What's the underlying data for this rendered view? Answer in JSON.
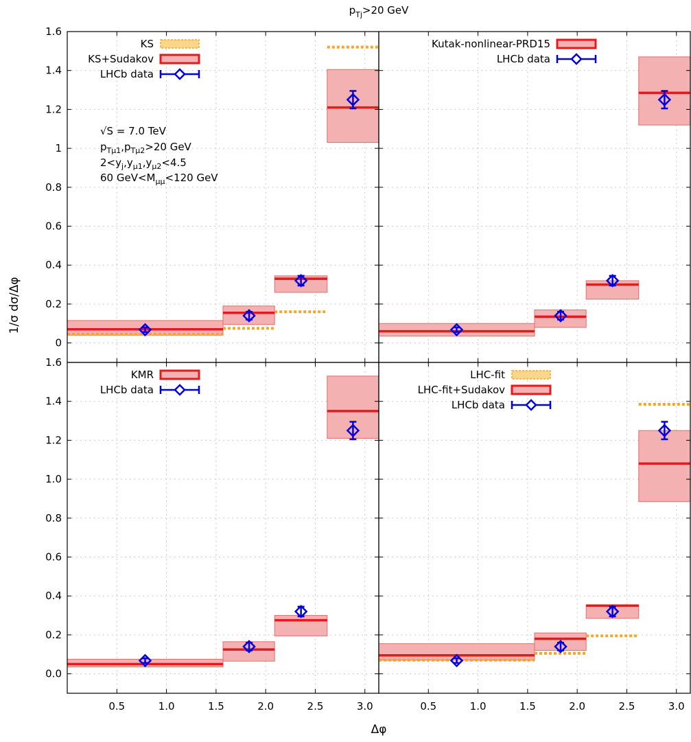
{
  "figure": {
    "title_main": "p",
    "title_sub": "Tj",
    "title_rest": ">20 GeV",
    "xlabel": "Δφ",
    "ylabel": "1/σ dσ/Δφ",
    "top_ytick_labels": [
      "0",
      "0.2",
      "0.4",
      "0.6",
      "0.8",
      "1",
      "1.2",
      "1.4",
      "1.6"
    ],
    "bottom_ytick_labels": [
      "0.0",
      "0.2",
      "0.4",
      "0.6",
      "0.8",
      "1.0",
      "1.2",
      "1.4",
      "1.6"
    ],
    "xtick_labels": [
      "0.5",
      "1.0",
      "1.5",
      "2.0",
      "2.5",
      "3.0"
    ],
    "annotation": {
      "line1": "√S = 7.0 TeV",
      "line2_p1": "p",
      "line2_s1": "Tμ1",
      "line2_mid": ",p",
      "line2_s2": "Tμ2",
      "line2_end": ">20 GeV",
      "line3_a": "2<y",
      "line3_s1": "j",
      "line3_b": ",y",
      "line3_s2": "μ1",
      "line3_c": ",y",
      "line3_s3": "μ2",
      "line3_d": "<4.5",
      "line4_a": "60 GeV<M",
      "line4_s": "μμ",
      "line4_b": "<120 GeV"
    }
  },
  "colors": {
    "band_fill": "#f4b1b1",
    "band_edge": "#e66a6a",
    "central_line": "#e41a1c",
    "data": "#0000e0",
    "ks_dashed": "#f5a623",
    "grid": "#bbbbbb"
  },
  "chart_data": [
    {
      "panel": "top-left",
      "type": "bar",
      "x_edges": [
        0,
        1.57,
        2.09,
        2.62,
        3.14
      ],
      "xlim": [
        0,
        3.14
      ],
      "ylim": [
        -0.1,
        1.6
      ],
      "grid": true,
      "legend_position": "top-left",
      "legend": [
        "KS",
        "KS+Sudakov",
        "LHCb data"
      ],
      "bands": [
        {
          "name": "KS+Sudakov",
          "lo": [
            0.04,
            0.095,
            0.26,
            1.03
          ],
          "hi": [
            0.115,
            0.19,
            0.345,
            1.405
          ],
          "central": [
            0.07,
            0.155,
            0.33,
            1.21
          ]
        }
      ],
      "lines": [
        {
          "name": "KS",
          "values": [
            0.045,
            0.075,
            0.16,
            1.52
          ]
        }
      ],
      "data": {
        "name": "LHCb data",
        "x": [
          0.785,
          1.833,
          2.356,
          2.88
        ],
        "y": [
          0.068,
          0.14,
          0.32,
          1.25
        ],
        "err": [
          0.012,
          0.02,
          0.025,
          0.045
        ]
      }
    },
    {
      "panel": "top-right",
      "type": "bar",
      "x_edges": [
        0,
        1.57,
        2.09,
        2.62,
        3.14
      ],
      "xlim": [
        0,
        3.14
      ],
      "ylim": [
        -0.1,
        1.6
      ],
      "grid": true,
      "legend_position": "top-left",
      "legend": [
        "Kutak-nonlinear-PRD15",
        "LHCb data"
      ],
      "bands": [
        {
          "name": "Kutak-nonlinear-PRD15",
          "lo": [
            0.035,
            0.08,
            0.225,
            1.12
          ],
          "hi": [
            0.1,
            0.17,
            0.32,
            1.47
          ],
          "central": [
            0.06,
            0.135,
            0.3,
            1.285
          ]
        }
      ],
      "lines": [],
      "data": {
        "name": "LHCb data",
        "x": [
          0.785,
          1.833,
          2.356,
          2.88
        ],
        "y": [
          0.068,
          0.14,
          0.32,
          1.25
        ],
        "err": [
          0.012,
          0.02,
          0.025,
          0.045
        ]
      }
    },
    {
      "panel": "bottom-left",
      "type": "bar",
      "x_edges": [
        0,
        1.57,
        2.09,
        2.62,
        3.14
      ],
      "xlim": [
        0,
        3.14
      ],
      "ylim": [
        -0.1,
        1.6
      ],
      "grid": true,
      "legend_position": "top-left",
      "legend": [
        "KMR",
        "LHCb data"
      ],
      "bands": [
        {
          "name": "KMR",
          "lo": [
            0.035,
            0.065,
            0.195,
            1.21
          ],
          "hi": [
            0.075,
            0.165,
            0.3,
            1.53
          ],
          "central": [
            0.05,
            0.125,
            0.275,
            1.35
          ]
        }
      ],
      "lines": [],
      "data": {
        "name": "LHCb data",
        "x": [
          0.785,
          1.833,
          2.356,
          2.88
        ],
        "y": [
          0.068,
          0.14,
          0.32,
          1.25
        ],
        "err": [
          0.012,
          0.02,
          0.025,
          0.045
        ]
      }
    },
    {
      "panel": "bottom-right",
      "type": "bar",
      "x_edges": [
        0,
        1.57,
        2.09,
        2.62,
        3.14
      ],
      "xlim": [
        0,
        3.14
      ],
      "ylim": [
        -0.1,
        1.6
      ],
      "grid": true,
      "legend_position": "top-left",
      "legend": [
        "LHC-fit",
        "LHC-fit+Sudakov",
        "LHCb data"
      ],
      "bands": [
        {
          "name": "LHC-fit+Sudakov",
          "lo": [
            0.07,
            0.12,
            0.285,
            0.885
          ],
          "hi": [
            0.155,
            0.21,
            0.355,
            1.25
          ],
          "central": [
            0.095,
            0.18,
            0.35,
            1.08
          ]
        }
      ],
      "lines": [
        {
          "name": "LHC-fit",
          "values": [
            0.07,
            0.105,
            0.195,
            1.385
          ]
        }
      ],
      "data": {
        "name": "LHCb data",
        "x": [
          0.785,
          1.833,
          2.356,
          2.88
        ],
        "y": [
          0.068,
          0.14,
          0.32,
          1.25
        ],
        "err": [
          0.012,
          0.02,
          0.025,
          0.045
        ]
      }
    }
  ]
}
